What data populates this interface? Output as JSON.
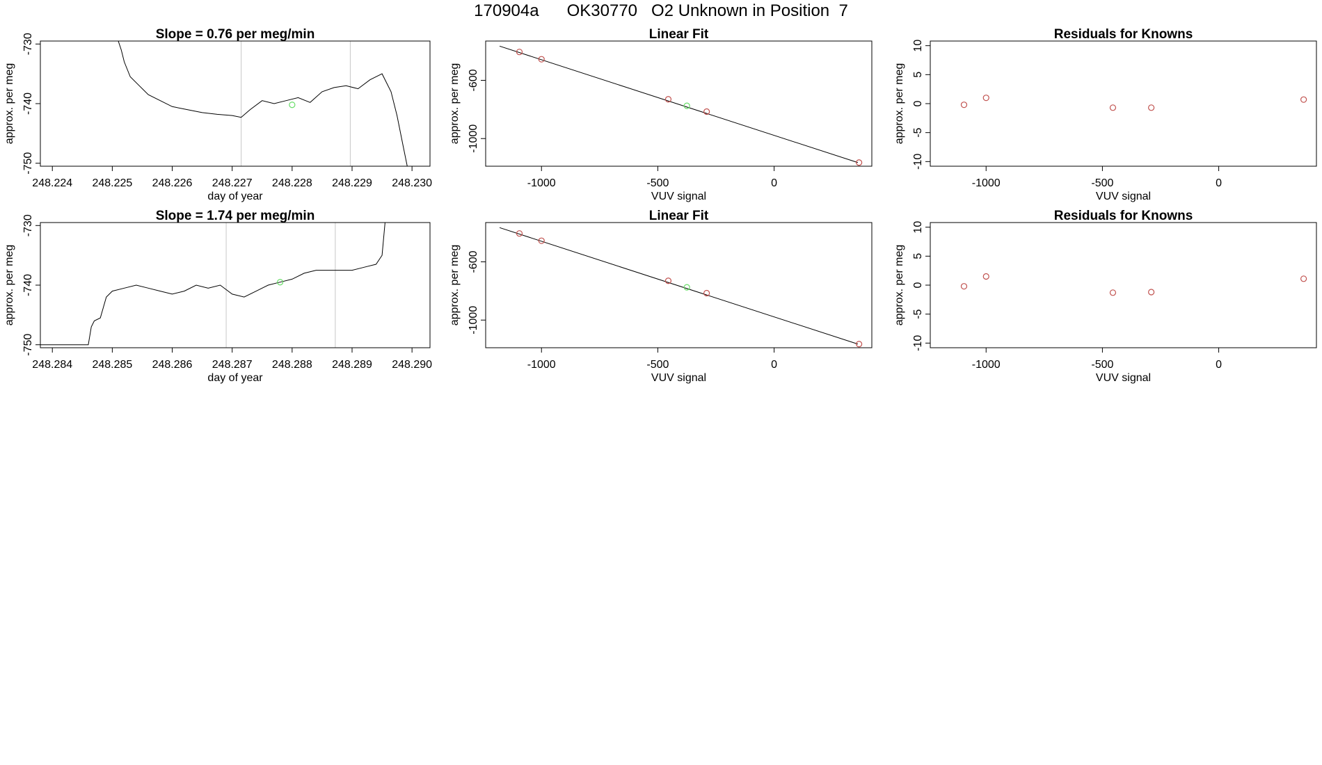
{
  "page_title": "170904a      OK30770   O2 Unknown in Position  7",
  "colors": {
    "trace": "#000000",
    "known_point": "#c0504d",
    "unknown_point": "#66dd66",
    "vline": "#c8c8c8",
    "axis": "#000000"
  },
  "chart_data": [
    {
      "type": "line",
      "title": "Slope =  0.76  per meg/min",
      "xlabel": "day of year",
      "ylabel": "approx. per meg",
      "xlim": [
        248.2238,
        248.2303
      ],
      "ylim": [
        -750.5,
        -729.5
      ],
      "xticks": [
        248.224,
        248.225,
        248.226,
        248.227,
        248.228,
        248.229,
        248.23
      ],
      "xtick_labels": [
        "248.224",
        "248.225",
        "248.226",
        "248.227",
        "248.228",
        "248.229",
        "248.230"
      ],
      "yticks": [
        -750,
        -740,
        -730
      ],
      "ytick_labels": [
        "-750",
        "-740",
        "-730"
      ],
      "vlines": [
        248.22715,
        248.22897
      ],
      "unknown_marker": {
        "x": 248.228,
        "y": -740.2
      },
      "series": [
        {
          "x": [
            248.2251,
            248.22515,
            248.2252,
            248.2253,
            248.22545,
            248.2256,
            248.2258,
            248.226,
            248.22625,
            248.2265,
            248.22675,
            248.227,
            248.22715,
            248.2273,
            248.2275,
            248.2277,
            248.2279,
            248.2281,
            248.2283,
            248.2285,
            248.2287,
            248.2289,
            248.2291,
            248.2293,
            248.2295,
            248.22965,
            248.22975,
            248.22985,
            248.22992
          ],
          "y": [
            -729.5,
            -731,
            -733,
            -735.5,
            -737,
            -738.5,
            -739.5,
            -740.5,
            -741,
            -741.5,
            -741.8,
            -742,
            -742.3,
            -741,
            -739.5,
            -740,
            -739.5,
            -739,
            -739.8,
            -738,
            -737.3,
            -737,
            -737.5,
            -736,
            -735,
            -738,
            -742,
            -747,
            -750.5
          ]
        }
      ]
    },
    {
      "type": "scatter",
      "title": "Linear Fit",
      "xlabel": "VUV signal",
      "ylabel": "approx. per meg",
      "xlim": [
        -1240,
        420
      ],
      "ylim": [
        -1190,
        -330
      ],
      "xticks": [
        -1000,
        -500,
        0
      ],
      "xtick_labels": [
        "-1000",
        "-500",
        "0"
      ],
      "yticks": [
        -1000,
        -600
      ],
      "ytick_labels": [
        "-1000",
        "-600"
      ],
      "fit_line": {
        "x": [
          -1180,
          360
        ],
        "y": [
          -365,
          -1165
        ]
      },
      "knowns": {
        "x": [
          -1095,
          -1000,
          -455,
          -290,
          365
        ],
        "y": [
          -405,
          -455,
          -730,
          -815,
          -1165
        ]
      },
      "unknown": {
        "x": [
          -375
        ],
        "y": [
          -775
        ]
      }
    },
    {
      "type": "scatter",
      "title": "Residuals for Knowns",
      "xlabel": "VUV signal",
      "ylabel": "approx. per meg",
      "xlim": [
        -1240,
        420
      ],
      "ylim": [
        -10.8,
        10.8
      ],
      "xticks": [
        -1000,
        -500,
        0
      ],
      "xtick_labels": [
        "-1000",
        "-500",
        "0"
      ],
      "yticks": [
        -10,
        -5,
        0,
        5,
        10
      ],
      "ytick_labels": [
        "-10",
        "-5",
        "0",
        "5",
        "10"
      ],
      "knowns": {
        "x": [
          -1095,
          -1000,
          -455,
          -290,
          365
        ],
        "y": [
          -0.2,
          1.0,
          -0.7,
          -0.7,
          0.7
        ]
      }
    },
    {
      "type": "line",
      "title": "Slope =  1.74  per meg/min",
      "xlabel": "day of year",
      "ylabel": "approx. per meg",
      "xlim": [
        248.2838,
        248.2903
      ],
      "ylim": [
        -750.5,
        -729.5
      ],
      "xticks": [
        248.284,
        248.285,
        248.286,
        248.287,
        248.288,
        248.289,
        248.29
      ],
      "xtick_labels": [
        "248.284",
        "248.285",
        "248.286",
        "248.287",
        "248.288",
        "248.289",
        "248.290"
      ],
      "yticks": [
        -750,
        -740,
        -730
      ],
      "ytick_labels": [
        "-750",
        "-740",
        "-730"
      ],
      "vlines": [
        248.2869,
        248.28872
      ],
      "unknown_marker": {
        "x": 248.2878,
        "y": -739.5
      },
      "series": [
        {
          "x": [
            248.2838,
            248.2845,
            248.2846,
            248.28465,
            248.2847,
            248.2848,
            248.2849,
            248.285,
            248.2852,
            248.2854,
            248.2856,
            248.2858,
            248.286,
            248.2862,
            248.2864,
            248.2866,
            248.2868,
            248.287,
            248.2872,
            248.2874,
            248.2876,
            248.2878,
            248.288,
            248.2882,
            248.2884,
            248.2886,
            248.2888,
            248.289,
            248.2892,
            248.2894,
            248.2895,
            248.28955
          ],
          "y": [
            -750,
            -750,
            -750,
            -747,
            -746,
            -745.5,
            -742,
            -741,
            -740.5,
            -740,
            -740.5,
            -741,
            -741.5,
            -741,
            -740,
            -740.5,
            -740,
            -741.5,
            -742,
            -741,
            -740,
            -739.5,
            -739,
            -738,
            -737.5,
            -737.5,
            -737.5,
            -737.5,
            -737,
            -736.5,
            -735,
            -729.5
          ]
        }
      ]
    },
    {
      "type": "scatter",
      "title": "Linear Fit",
      "xlabel": "VUV signal",
      "ylabel": "approx. per meg",
      "xlim": [
        -1240,
        420
      ],
      "ylim": [
        -1190,
        -330
      ],
      "xticks": [
        -1000,
        -500,
        0
      ],
      "xtick_labels": [
        "-1000",
        "-500",
        "0"
      ],
      "yticks": [
        -1000,
        -600
      ],
      "ytick_labels": [
        "-1000",
        "-600"
      ],
      "fit_line": {
        "x": [
          -1180,
          360
        ],
        "y": [
          -365,
          -1165
        ]
      },
      "knowns": {
        "x": [
          -1095,
          -1000,
          -455,
          -290,
          365
        ],
        "y": [
          -405,
          -455,
          -730,
          -815,
          -1165
        ]
      },
      "unknown": {
        "x": [
          -375
        ],
        "y": [
          -775
        ]
      }
    },
    {
      "type": "scatter",
      "title": "Residuals for Knowns",
      "xlabel": "VUV signal",
      "ylabel": "approx. per meg",
      "xlim": [
        -1240,
        420
      ],
      "ylim": [
        -10.8,
        10.8
      ],
      "xticks": [
        -1000,
        -500,
        0
      ],
      "xtick_labels": [
        "-1000",
        "-500",
        "0"
      ],
      "yticks": [
        -10,
        -5,
        0,
        5,
        10
      ],
      "ytick_labels": [
        "-10",
        "-5",
        "0",
        "5",
        "10"
      ],
      "knowns": {
        "x": [
          -1095,
          -1000,
          -455,
          -290,
          365
        ],
        "y": [
          -0.2,
          1.5,
          -1.3,
          -1.2,
          1.1
        ]
      }
    }
  ]
}
